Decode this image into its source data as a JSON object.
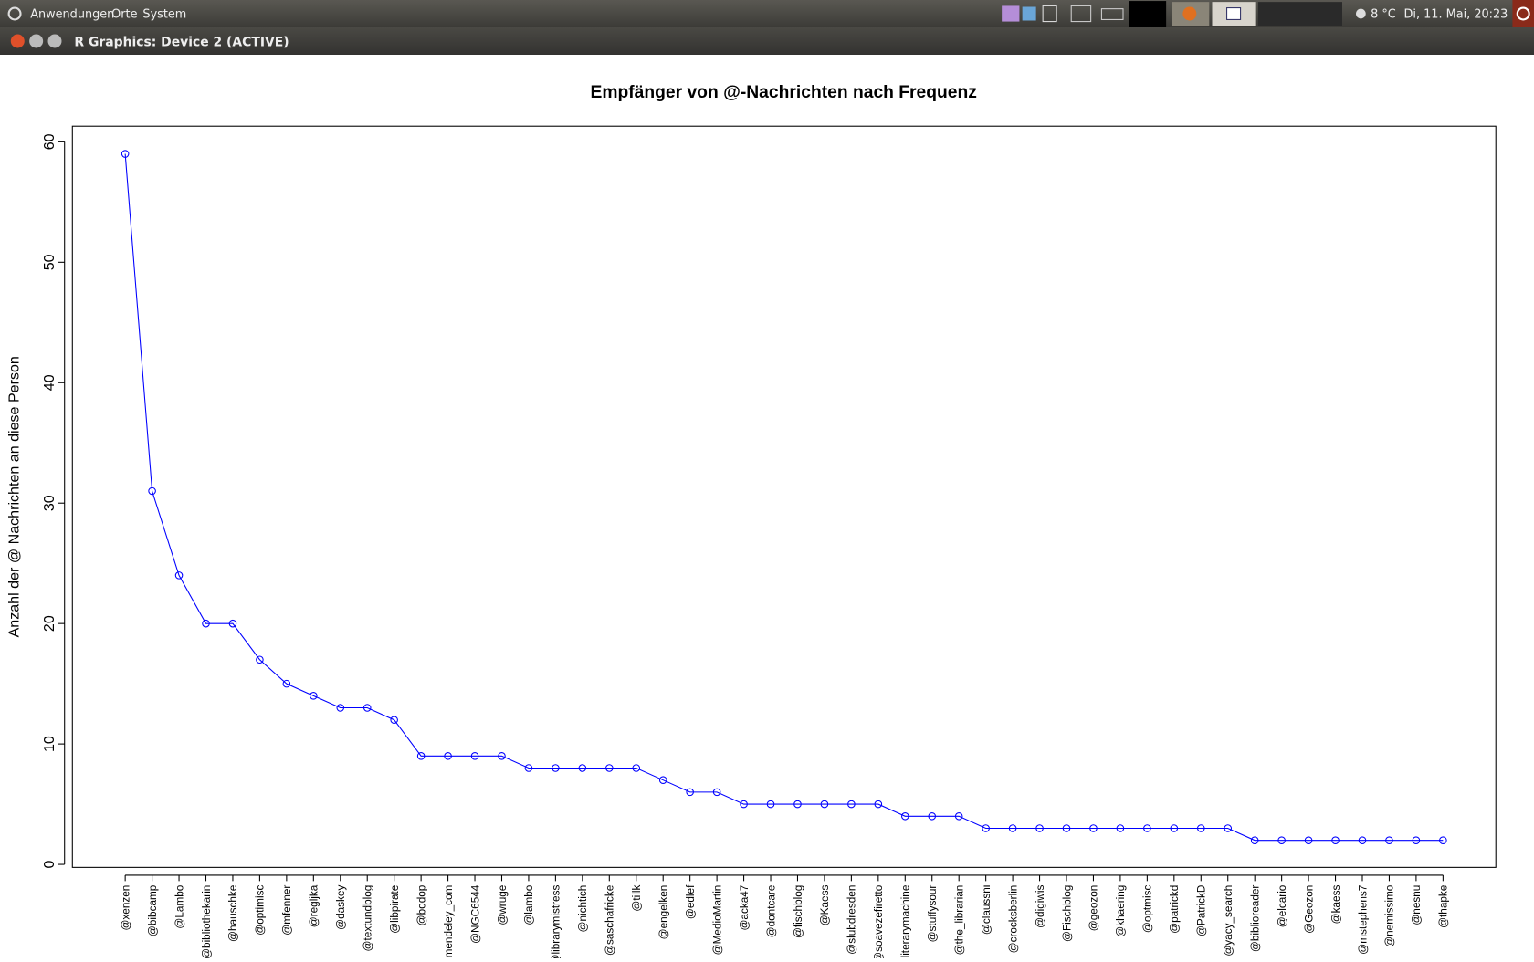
{
  "panel": {
    "menus": [
      "Anwendungen",
      "Orte",
      "System"
    ],
    "weather": "8 °C",
    "clock": "Di, 11. Mai, 20:23"
  },
  "window": {
    "title": "R Graphics: Device 2 (ACTIVE)"
  },
  "chart_data": {
    "type": "line",
    "title": "Empfänger von @-Nachrichten nach Frequenz",
    "y_label": "Anzahl der @ Nachrichten an diese Person",
    "categories": [
      "@xenzen",
      "@bibcamp",
      "@Lambo",
      "@bibliothekarin",
      "@hauschke",
      "@optimisc",
      "@mfenner",
      "@regljka",
      "@daskey",
      "@textundblog",
      "@libpirate",
      "@bodop",
      "@mendeley_com",
      "@NGC6544",
      "@wruge",
      "@lambo",
      "@librarymistress",
      "@nichtich",
      "@saschafricke",
      "@tillk",
      "@engelken",
      "@edlef",
      "@MedioMartin",
      "@acka47",
      "@dontcare",
      "@fischblog",
      "@Kaess",
      "@slubdresden",
      "@soavezefiretto",
      "@literarymachine",
      "@stuffysour",
      "@the_librarian",
      "@claussni",
      "@crocksberlin",
      "@digiwis",
      "@Fischblog",
      "@geozon",
      "@khaering",
      "@optmisc",
      "@patrickd",
      "@PatrickD",
      "@yacy_search",
      "@biblioreader",
      "@elcario",
      "@Geozon",
      "@kaess",
      "@mstephens7",
      "@nemissimo",
      "@nesnu",
      "@thapke"
    ],
    "values": [
      59,
      31,
      24,
      20,
      20,
      17,
      15,
      14,
      13,
      13,
      12,
      9,
      9,
      9,
      9,
      8,
      8,
      8,
      8,
      8,
      7,
      6,
      6,
      5,
      5,
      5,
      5,
      5,
      5,
      4,
      4,
      4,
      3,
      3,
      3,
      3,
      3,
      3,
      3,
      3,
      3,
      3,
      2,
      2,
      2,
      2,
      2,
      2,
      2,
      2
    ],
    "color": "#0000ff",
    "ylim": [
      -0.25,
      61.3
    ],
    "yticks": [
      0,
      10,
      20,
      30,
      40,
      50,
      60
    ]
  }
}
